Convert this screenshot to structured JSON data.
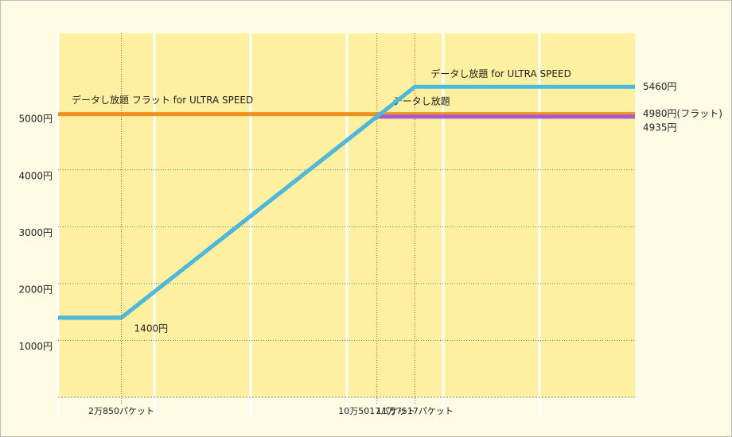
{
  "chart_data": {
    "type": "line",
    "xlim": [
      0,
      190000
    ],
    "ylim": [
      0,
      6400
    ],
    "xticks": [
      {
        "value": 20850,
        "label": "2万850パケット"
      },
      {
        "value": 105017,
        "label": "10万5017パケット"
      },
      {
        "value": 117517,
        "label": "11万7517パケット"
      }
    ],
    "yticks": [
      {
        "value": 1000,
        "label": "1000円"
      },
      {
        "value": 2000,
        "label": "2000円"
      },
      {
        "value": 3000,
        "label": "3000円"
      },
      {
        "value": 4000,
        "label": "4000円"
      },
      {
        "value": 5000,
        "label": "5000円"
      }
    ],
    "grid": true,
    "series": [
      {
        "name": "データし放題 フラット for ULTRA SPEED",
        "color": "#f0901e",
        "x": [
          0,
          190000
        ],
        "values": [
          4980,
          4980
        ],
        "value_labels": [
          null,
          "4980円(フラット)"
        ]
      },
      {
        "name": "データし放題",
        "color": "#a35ad6",
        "x": [
          0,
          20850,
          105017,
          190000
        ],
        "values": [
          1400,
          1400,
          4935,
          4935
        ],
        "value_labels": [
          null,
          null,
          null,
          "4935円"
        ]
      },
      {
        "name": "データし放題  for ULTRA SPEED",
        "color": "#4cb9d9",
        "x": [
          0,
          20850,
          117517,
          190000
        ],
        "values": [
          1400,
          1400,
          5460,
          5460
        ],
        "value_labels": [
          null,
          "1400円",
          null,
          "5460円"
        ]
      }
    ]
  }
}
